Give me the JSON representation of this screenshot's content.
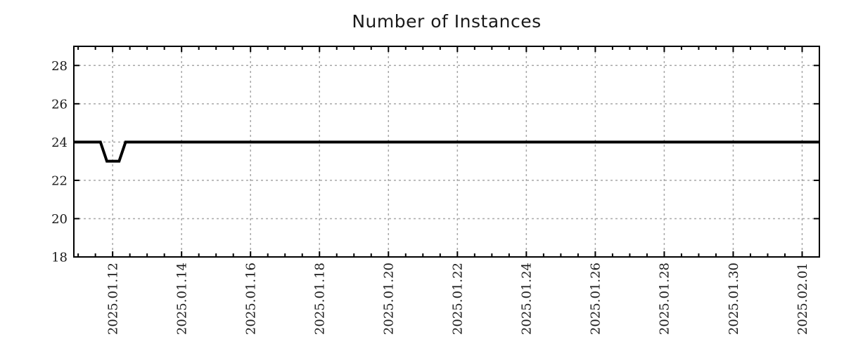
{
  "chart_data": {
    "type": "line",
    "title": "Number of Instances",
    "xlabel": "",
    "ylabel": "",
    "legend": "none",
    "grid": true,
    "colors": {
      "line": "#000000",
      "axis": "#000000",
      "grid": "#a8a8a8",
      "text": "#1a1a1a",
      "background": "#ffffff"
    },
    "x_axis": {
      "min": "2025-01-10T21:00:00",
      "max": "2025-02-01T12:00:00",
      "minor_tick_step_hours": 12,
      "major_ticks": [
        {
          "label": "2025.01.12",
          "date": "2025-01-12T00:00:00"
        },
        {
          "label": "2025.01.14",
          "date": "2025-01-14T00:00:00"
        },
        {
          "label": "2025.01.16",
          "date": "2025-01-16T00:00:00"
        },
        {
          "label": "2025.01.18",
          "date": "2025-01-18T00:00:00"
        },
        {
          "label": "2025.01.20",
          "date": "2025-01-20T00:00:00"
        },
        {
          "label": "2025.01.22",
          "date": "2025-01-22T00:00:00"
        },
        {
          "label": "2025.01.24",
          "date": "2025-01-24T00:00:00"
        },
        {
          "label": "2025.01.26",
          "date": "2025-01-26T00:00:00"
        },
        {
          "label": "2025.01.28",
          "date": "2025-01-28T00:00:00"
        },
        {
          "label": "2025.01.30",
          "date": "2025-01-30T00:00:00"
        },
        {
          "label": "2025.02.01",
          "date": "2025-02-01T00:00:00"
        }
      ]
    },
    "y_axis": {
      "min": 18,
      "max": 29,
      "ticks": [
        18,
        20,
        22,
        24,
        26,
        28
      ]
    },
    "series": [
      {
        "name": "instances",
        "stroke_width": 4,
        "color": "#000000",
        "points": [
          {
            "t": "2025-01-10T21:00:00",
            "v": 24
          },
          {
            "t": "2025-01-11T15:30:00",
            "v": 24
          },
          {
            "t": "2025-01-11T20:00:00",
            "v": 23
          },
          {
            "t": "2025-01-12T04:30:00",
            "v": 23
          },
          {
            "t": "2025-01-12T09:00:00",
            "v": 24
          },
          {
            "t": "2025-02-01T12:00:00",
            "v": 24
          }
        ]
      }
    ]
  }
}
